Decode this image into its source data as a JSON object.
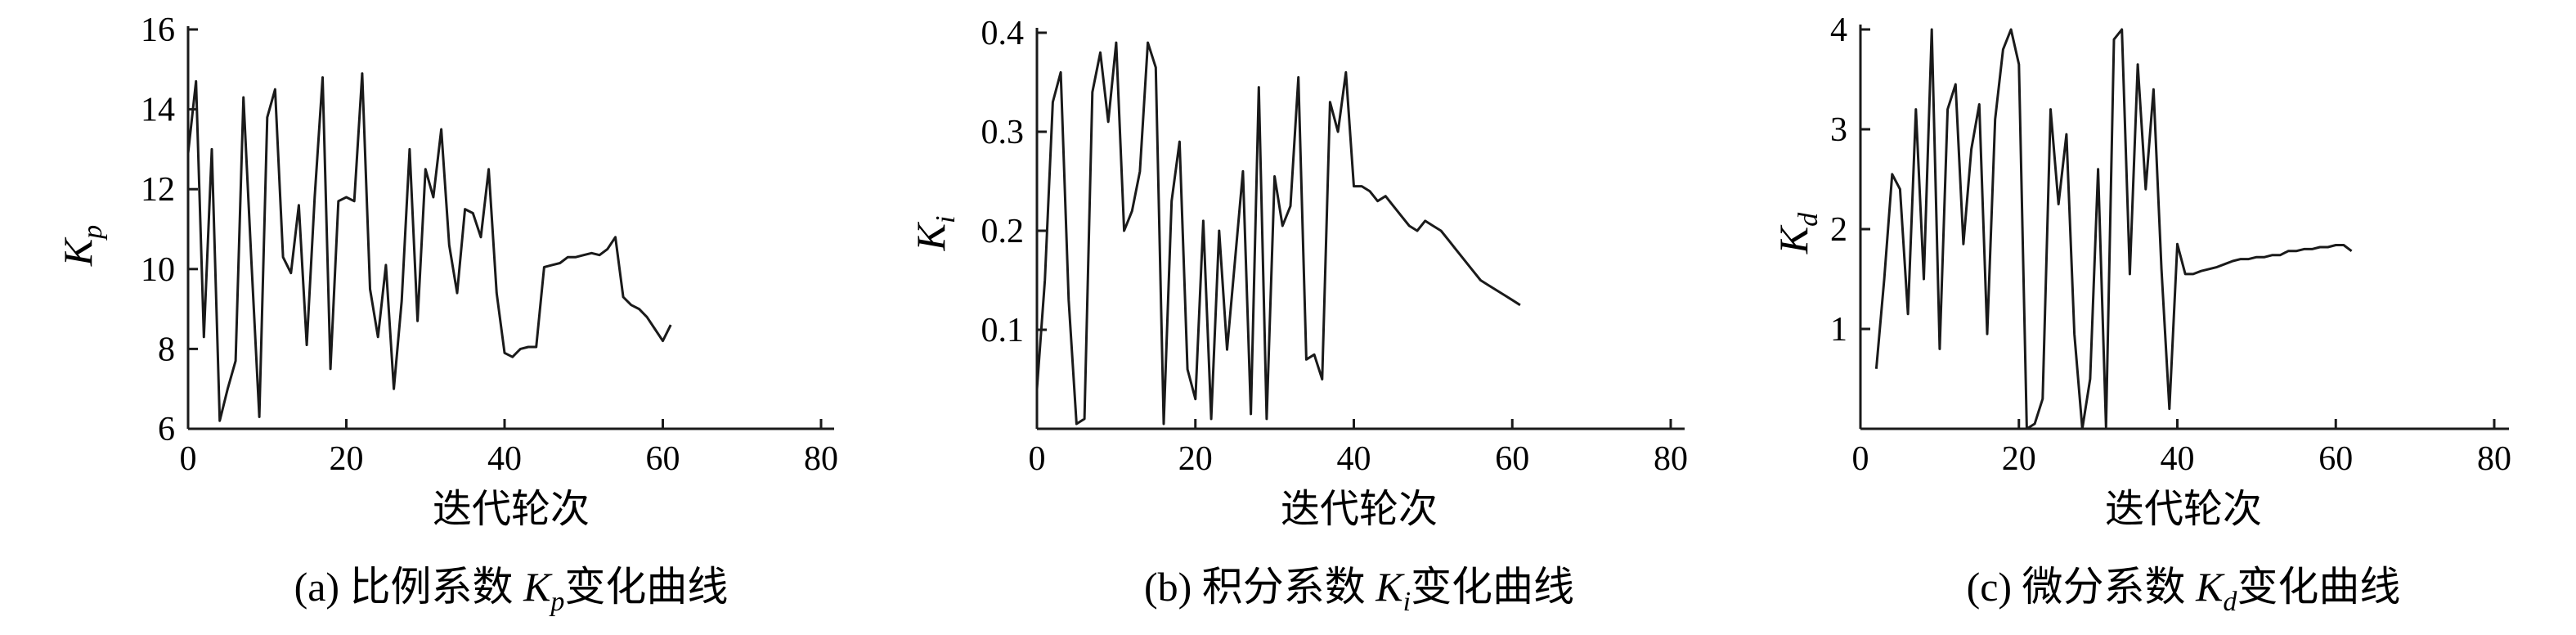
{
  "chart_data": [
    {
      "type": "line",
      "caption_prefix": "(a) 比例系数 ",
      "caption_symbol": "K",
      "caption_subscript": "p",
      "caption_suffix": "变化曲线",
      "xlabel": "迭代轮次",
      "ylabel_symbol": "K",
      "ylabel_subscript": "p",
      "xlim": [
        0,
        80
      ],
      "ylim": [
        6,
        16
      ],
      "xticks": [
        "0",
        "20",
        "40",
        "60",
        "80"
      ],
      "yticks": [
        "6",
        "8",
        "10",
        "12",
        "14",
        "16"
      ],
      "series": [
        {
          "x": [
            0,
            1,
            2,
            3,
            4,
            5,
            6,
            7,
            8,
            9,
            10,
            11,
            12,
            13,
            14,
            15,
            16,
            17,
            18,
            19,
            20,
            21,
            22,
            23,
            24,
            25,
            26,
            27,
            28,
            29,
            30,
            31,
            32,
            33,
            34,
            35,
            36,
            37,
            38,
            39,
            40,
            41,
            42,
            43,
            44,
            45,
            46,
            47,
            48,
            49,
            50,
            51,
            52,
            53,
            54,
            55,
            56,
            57,
            58,
            59,
            60,
            61
          ],
          "y": [
            12.9,
            14.7,
            8.3,
            13.0,
            6.2,
            7.0,
            7.7,
            14.3,
            10.2,
            6.3,
            13.8,
            14.5,
            10.3,
            9.9,
            11.6,
            8.1,
            11.8,
            14.8,
            7.5,
            11.7,
            11.8,
            11.7,
            14.9,
            9.5,
            8.3,
            10.1,
            7.0,
            9.2,
            13.0,
            8.7,
            12.5,
            11.8,
            13.5,
            10.6,
            9.4,
            11.5,
            11.4,
            10.8,
            12.5,
            9.4,
            7.9,
            7.8,
            8.0,
            8.05,
            8.05,
            10.05,
            10.1,
            10.15,
            10.3,
            10.3,
            10.35,
            10.4,
            10.35,
            10.5,
            10.8,
            9.3,
            9.1,
            9.0,
            8.8,
            8.5,
            8.2,
            8.6
          ]
        }
      ]
    },
    {
      "type": "line",
      "caption_prefix": "(b) 积分系数 ",
      "caption_symbol": "K",
      "caption_subscript": "i",
      "caption_suffix": "变化曲线",
      "xlabel": "迭代轮次",
      "ylabel_symbol": "K",
      "ylabel_subscript": "i",
      "xlim": [
        0,
        80
      ],
      "ylim": [
        0,
        0.4
      ],
      "xticks": [
        "0",
        "20",
        "40",
        "60",
        "80"
      ],
      "yticks": [
        "0.1",
        "0.2",
        "0.3",
        "0.4"
      ],
      "series": [
        {
          "x": [
            0,
            1,
            2,
            3,
            4,
            5,
            6,
            7,
            8,
            9,
            10,
            11,
            12,
            13,
            14,
            15,
            16,
            17,
            18,
            19,
            20,
            21,
            22,
            23,
            24,
            25,
            26,
            27,
            28,
            29,
            30,
            31,
            32,
            33,
            34,
            35,
            36,
            37,
            38,
            39,
            40,
            41,
            42,
            43,
            44,
            45,
            46,
            47,
            48,
            49,
            50,
            51,
            52,
            53,
            54,
            55,
            56,
            57,
            58,
            59,
            60,
            61
          ],
          "y": [
            0.04,
            0.15,
            0.33,
            0.36,
            0.13,
            0.005,
            0.01,
            0.34,
            0.38,
            0.31,
            0.39,
            0.2,
            0.22,
            0.26,
            0.39,
            0.365,
            0.005,
            0.23,
            0.29,
            0.06,
            0.03,
            0.21,
            0.01,
            0.2,
            0.08,
            0.17,
            0.26,
            0.015,
            0.345,
            0.01,
            0.255,
            0.205,
            0.225,
            0.355,
            0.07,
            0.075,
            0.05,
            0.33,
            0.3,
            0.36,
            0.245,
            0.245,
            0.24,
            0.23,
            0.235,
            0.225,
            0.215,
            0.205,
            0.2,
            0.21,
            0.205,
            0.2,
            0.19,
            0.18,
            0.17,
            0.16,
            0.15,
            0.145,
            0.14,
            0.135,
            0.13,
            0.125
          ]
        }
      ]
    },
    {
      "type": "line",
      "caption_prefix": "(c) 微分系数 ",
      "caption_symbol": "K",
      "caption_subscript": "d",
      "caption_suffix": "变化曲线",
      "xlabel": "迭代轮次",
      "ylabel_symbol": "K",
      "ylabel_subscript": "d",
      "xlim": [
        0,
        80
      ],
      "ylim": [
        0,
        4
      ],
      "xticks": [
        "0",
        "20",
        "40",
        "60",
        "80"
      ],
      "yticks": [
        "1",
        "2",
        "3",
        "4"
      ],
      "series": [
        {
          "x": [
            2,
            3,
            4,
            5,
            6,
            7,
            8,
            9,
            10,
            11,
            12,
            13,
            14,
            15,
            16,
            17,
            18,
            19,
            20,
            21,
            22,
            23,
            24,
            25,
            26,
            27,
            28,
            29,
            30,
            31,
            32,
            33,
            34,
            35,
            36,
            37,
            38,
            39,
            40,
            41,
            42,
            43,
            44,
            45,
            46,
            47,
            48,
            49,
            50,
            51,
            52,
            53,
            54,
            55,
            56,
            57,
            58,
            59,
            60,
            61,
            62
          ],
          "y": [
            0.6,
            1.5,
            2.55,
            2.4,
            1.15,
            3.2,
            1.5,
            4.0,
            0.8,
            3.2,
            3.45,
            1.85,
            2.8,
            3.25,
            0.95,
            3.1,
            3.8,
            4.0,
            3.65,
            0.0,
            0.05,
            0.3,
            3.2,
            2.25,
            2.95,
            0.95,
            0.0,
            0.5,
            2.6,
            0.02,
            3.9,
            4.0,
            1.55,
            3.65,
            2.4,
            3.4,
            1.6,
            0.2,
            1.85,
            1.55,
            1.55,
            1.58,
            1.6,
            1.62,
            1.65,
            1.68,
            1.7,
            1.7,
            1.72,
            1.72,
            1.74,
            1.74,
            1.78,
            1.78,
            1.8,
            1.8,
            1.82,
            1.82,
            1.84,
            1.84,
            1.78
          ]
        }
      ]
    }
  ]
}
